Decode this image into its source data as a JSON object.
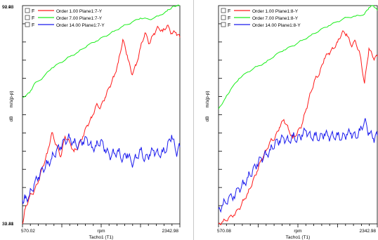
{
  "chart_data": [
    {
      "type": "line",
      "panel": "left",
      "xlabel": "Tacho1 (T1)",
      "xunit": "rpm",
      "ylabel": "m/s(p-p)",
      "yunit": "dB",
      "xlim": [
        570.02,
        2342.98
      ],
      "ylim": [
        32.31,
        90.93
      ],
      "x_ticklabels": [
        "570.02",
        "2342.98"
      ],
      "y_ticklabels": [
        "90.93",
        "32.31"
      ],
      "series": [
        {
          "name": "Order 1.00 Plane1:7-Y",
          "checkbox_label": "F",
          "color": "#ff1a1a",
          "points": [
            [
              570.02,
              32.31
            ],
            [
              600,
              36.3
            ],
            [
              650,
              39.7
            ],
            [
              700,
              41.0
            ],
            [
              750,
              43.8
            ],
            [
              800,
              47.8
            ],
            [
              850,
              51.3
            ],
            [
              900,
              56.8
            ],
            [
              950,
              53.6
            ],
            [
              1000,
              50.3
            ],
            [
              1050,
              55.8
            ],
            [
              1100,
              54.3
            ],
            [
              1150,
              51.7
            ],
            [
              1200,
              53.1
            ],
            [
              1250,
              55.8
            ],
            [
              1300,
              58.8
            ],
            [
              1350,
              60.8
            ],
            [
              1400,
              64.2
            ],
            [
              1450,
              63.6
            ],
            [
              1500,
              66.2
            ],
            [
              1550,
              69.1
            ],
            [
              1600,
              71.8
            ],
            [
              1650,
              75.7
            ],
            [
              1700,
              81.8
            ],
            [
              1750,
              77.6
            ],
            [
              1800,
              72.5
            ],
            [
              1850,
              74.9
            ],
            [
              1900,
              79.7
            ],
            [
              1950,
              83.6
            ],
            [
              2000,
              80.7
            ],
            [
              2050,
              83.4
            ],
            [
              2100,
              85.1
            ],
            [
              2150,
              84.0
            ],
            [
              2200,
              85.6
            ],
            [
              2250,
              83.5
            ],
            [
              2300,
              83.7
            ],
            [
              2342.98,
              82.4
            ]
          ]
        },
        {
          "name": "Order 7.00 Plane1:7-Y",
          "checkbox_label": "F",
          "color": "#1aee1a",
          "points": [
            [
              570.02,
              66.3
            ],
            [
              650,
              67.5
            ],
            [
              700,
              69.8
            ],
            [
              800,
              71.6
            ],
            [
              900,
              74.2
            ],
            [
              1000,
              75.6
            ],
            [
              1100,
              77.2
            ],
            [
              1200,
              78.5
            ],
            [
              1300,
              80.2
            ],
            [
              1400,
              81.4
            ],
            [
              1500,
              82.7
            ],
            [
              1600,
              84.0
            ],
            [
              1700,
              85.4
            ],
            [
              1800,
              86.4
            ],
            [
              1900,
              87.6
            ],
            [
              2000,
              87.2
            ],
            [
              2100,
              88.1
            ],
            [
              2200,
              89.5
            ],
            [
              2250,
              90.4
            ],
            [
              2300,
              90.9
            ],
            [
              2342.98,
              90.9
            ]
          ]
        },
        {
          "name": "Order 14.00 Plane1:7-Y",
          "checkbox_label": "F",
          "color": "#1a1aee",
          "points": [
            [
              570.02,
              38.7
            ],
            [
              600,
              39.1
            ],
            [
              650,
              40.0
            ],
            [
              700,
              42.8
            ],
            [
              750,
              44.9
            ],
            [
              800,
              47.0
            ],
            [
              850,
              48.5
            ],
            [
              900,
              49.9
            ],
            [
              950,
              51.8
            ],
            [
              1000,
              53.0
            ],
            [
              1050,
              54.7
            ],
            [
              1100,
              55.4
            ],
            [
              1150,
              54.1
            ],
            [
              1200,
              53.4
            ],
            [
              1250,
              54.4
            ],
            [
              1300,
              55.0
            ],
            [
              1350,
              52.8
            ],
            [
              1400,
              53.2
            ],
            [
              1450,
              54.6
            ],
            [
              1500,
              52.3
            ],
            [
              1550,
              50.6
            ],
            [
              1600,
              51.3
            ],
            [
              1650,
              51.8
            ],
            [
              1700,
              49.6
            ],
            [
              1750,
              51.2
            ],
            [
              1800,
              48.5
            ],
            [
              1850,
              50.0
            ],
            [
              1900,
              52.2
            ],
            [
              1950,
              49.6
            ],
            [
              2000,
              50.9
            ],
            [
              2050,
              52.0
            ],
            [
              2100,
              51.0
            ],
            [
              2150,
              51.6
            ],
            [
              2200,
              52.8
            ],
            [
              2250,
              56.2
            ],
            [
              2300,
              51.4
            ],
            [
              2342.98,
              53.0
            ]
          ]
        }
      ]
    },
    {
      "type": "line",
      "panel": "right",
      "xlabel": "Tacho1 (T1)",
      "xunit": "rpm",
      "ylabel": "m/s(p-p)",
      "yunit": "dB",
      "xlim": [
        570.08,
        2342.98
      ],
      "ylim": [
        39.48,
        92.48
      ],
      "x_ticklabels": [
        "570.08",
        "2342.98"
      ],
      "y_ticklabels": [
        "92.48",
        "39.48"
      ],
      "series": [
        {
          "name": "Order 1.00 Plane1:8-Y",
          "checkbox_label": "F",
          "color": "#ff1a1a",
          "points": [
            [
              570.08,
              39.5
            ],
            [
              620,
              40.0
            ],
            [
              680,
              40.8
            ],
            [
              740,
              41.6
            ],
            [
              800,
              43.1
            ],
            [
              850,
              45.2
            ],
            [
              900,
              47.0
            ],
            [
              950,
              49.6
            ],
            [
              1000,
              52.2
            ],
            [
              1050,
              55.1
            ],
            [
              1100,
              57.2
            ],
            [
              1150,
              59.6
            ],
            [
              1200,
              60.3
            ],
            [
              1250,
              62.9
            ],
            [
              1300,
              64.8
            ],
            [
              1350,
              62.5
            ],
            [
              1400,
              60.3
            ],
            [
              1450,
              61.6
            ],
            [
              1500,
              63.5
            ],
            [
              1550,
              67.4
            ],
            [
              1600,
              71.4
            ],
            [
              1650,
              74.7
            ],
            [
              1700,
              76.1
            ],
            [
              1750,
              79.6
            ],
            [
              1800,
              80.9
            ],
            [
              1850,
              82.0
            ],
            [
              1900,
              83.6
            ],
            [
              1950,
              86.0
            ],
            [
              2000,
              85.6
            ],
            [
              2050,
              82.8
            ],
            [
              2100,
              83.8
            ],
            [
              2150,
              80.6
            ],
            [
              2200,
              73.6
            ],
            [
              2250,
              82.1
            ],
            [
              2300,
              79.7
            ],
            [
              2342.98,
              80.1
            ]
          ]
        },
        {
          "name": "Order 7.00 Plane1:8-Y",
          "checkbox_label": "F",
          "color": "#1aee1a",
          "points": [
            [
              570.08,
              67.4
            ],
            [
              650,
              70.1
            ],
            [
              700,
              71.9
            ],
            [
              800,
              74.8
            ],
            [
              900,
              76.4
            ],
            [
              1000,
              77.7
            ],
            [
              1100,
              78.7
            ],
            [
              1200,
              80.4
            ],
            [
              1300,
              81.7
            ],
            [
              1400,
              82.7
            ],
            [
              1500,
              84.0
            ],
            [
              1600,
              85.2
            ],
            [
              1700,
              86.5
            ],
            [
              1800,
              87.6
            ],
            [
              1900,
              88.6
            ],
            [
              2000,
              89.6
            ],
            [
              2100,
              89.9
            ],
            [
              2200,
              90.4
            ],
            [
              2250,
              92.0
            ],
            [
              2300,
              92.5
            ],
            [
              2342.98,
              91.3
            ]
          ]
        },
        {
          "name": "Order 14.00 Plane1:8-Y",
          "checkbox_label": "F",
          "color": "#1a1aee",
          "points": [
            [
              570.08,
              43.1
            ],
            [
              620,
              44.1
            ],
            [
              680,
              45.6
            ],
            [
              740,
              46.1
            ],
            [
              800,
              48.0
            ],
            [
              850,
              49.2
            ],
            [
              900,
              50.8
            ],
            [
              950,
              52.3
            ],
            [
              1000,
              53.9
            ],
            [
              1050,
              55.4
            ],
            [
              1100,
              56.3
            ],
            [
              1150,
              57.4
            ],
            [
              1200,
              59.0
            ],
            [
              1250,
              59.6
            ],
            [
              1300,
              60.3
            ],
            [
              1350,
              59.6
            ],
            [
              1400,
              60.8
            ],
            [
              1450,
              60.0
            ],
            [
              1500,
              61.0
            ],
            [
              1550,
              62.1
            ],
            [
              1600,
              60.5
            ],
            [
              1650,
              61.0
            ],
            [
              1700,
              60.3
            ],
            [
              1750,
              61.3
            ],
            [
              1800,
              60.7
            ],
            [
              1850,
              60.8
            ],
            [
              1900,
              61.0
            ],
            [
              1950,
              60.4
            ],
            [
              2000,
              61.2
            ],
            [
              2050,
              61.5
            ],
            [
              2100,
              60.6
            ],
            [
              2150,
              62.1
            ],
            [
              2200,
              64.5
            ],
            [
              2250,
              61.6
            ],
            [
              2300,
              60.2
            ],
            [
              2342.98,
              60.9
            ]
          ]
        }
      ]
    }
  ]
}
